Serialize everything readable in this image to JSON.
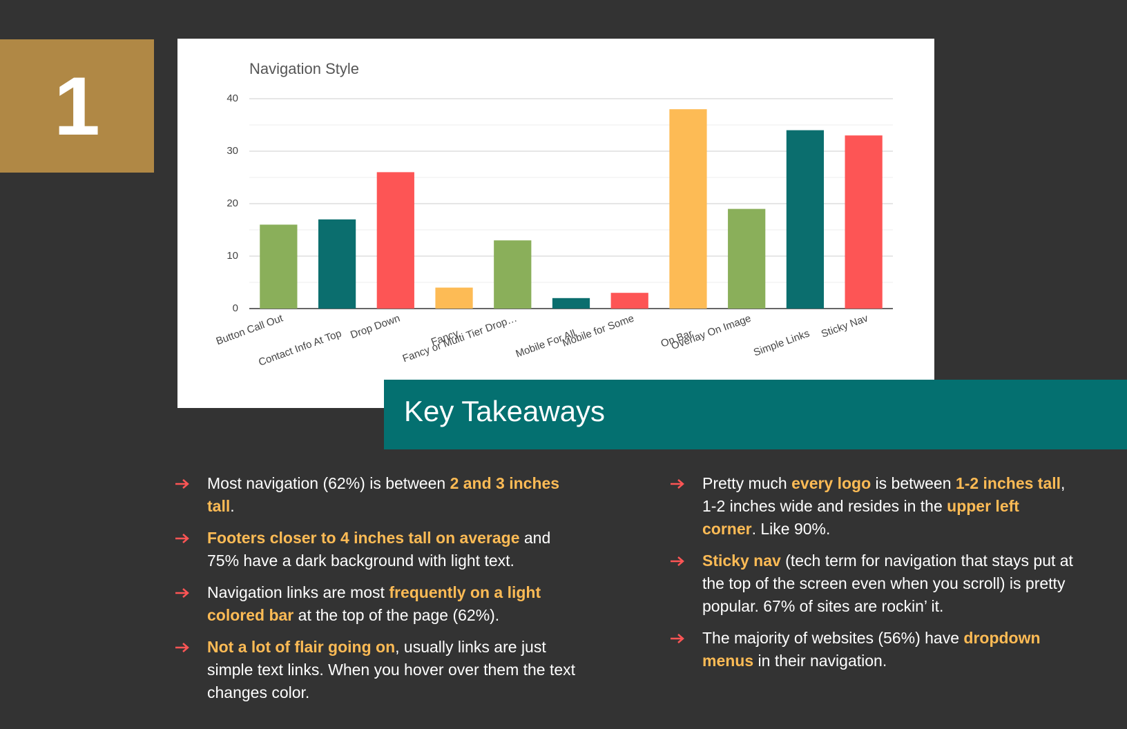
{
  "slide_number": "1",
  "chart_data": {
    "type": "bar",
    "title": "Navigation Style",
    "categories": [
      "Button Call Out",
      "Contact Info At Top",
      "Drop Down",
      "Fancy",
      "Fancy or Multi Tier Drop…",
      "Mobile For All",
      "Mobile for Some",
      "On Bar",
      "Overlay On Image",
      "Simple Links",
      "Sticky Nav"
    ],
    "values": [
      16,
      17,
      26,
      4,
      13,
      2,
      3,
      38,
      19,
      34,
      33
    ],
    "colors": [
      "#8aaf5a",
      "#0b6e6e",
      "#fd5555",
      "#fdbb55",
      "#8aaf5a",
      "#0b6e6e",
      "#fd5555",
      "#fdbb55",
      "#8aaf5a",
      "#0b6e6e",
      "#fd5555"
    ],
    "ylim": [
      0,
      40
    ],
    "yticks": [
      0,
      10,
      20,
      30,
      40
    ],
    "grid": true,
    "minor_grid": true
  },
  "takeaways": {
    "title": "Key Takeaways",
    "left": [
      [
        {
          "text": "Most navigation (62%) is between ",
          "highlight": false
        },
        {
          "text": "2 and 3 inches tall",
          "highlight": true
        },
        {
          "text": ".",
          "highlight": false
        }
      ],
      [
        {
          "text": "Footers closer to 4 inches tall on average",
          "highlight": true
        },
        {
          "text": " and 75% have a dark background with light text.",
          "highlight": false
        }
      ],
      [
        {
          "text": "Navigation links are most ",
          "highlight": false
        },
        {
          "text": "frequently on a light colored bar",
          "highlight": true
        },
        {
          "text": " at the top of the page (62%).",
          "highlight": false
        }
      ],
      [
        {
          "text": "Not a lot of flair going on",
          "highlight": true
        },
        {
          "text": ", usually links are just simple text links. When you hover over them the text changes color.",
          "highlight": false
        }
      ]
    ],
    "right": [
      [
        {
          "text": "Pretty much ",
          "highlight": false
        },
        {
          "text": "every logo",
          "highlight": true
        },
        {
          "text": " is between ",
          "highlight": false
        },
        {
          "text": "1-2 inches tall",
          "highlight": true
        },
        {
          "text": ", 1-2 inches wide and resides in the ",
          "highlight": false
        },
        {
          "text": "upper left corner",
          "highlight": true
        },
        {
          "text": ".  Like 90%.",
          "highlight": false
        }
      ],
      [
        {
          "text": "Sticky nav",
          "highlight": true
        },
        {
          "text": " (tech term for navigation that stays put at the top of the screen even when you scroll) is pretty popular. 67% of sites are rockin’ it.",
          "highlight": false
        }
      ],
      [
        {
          "text": "The majority of websites (56%) have ",
          "highlight": false
        },
        {
          "text": "dropdown menus",
          "highlight": true
        },
        {
          "text": " in their navigation.",
          "highlight": false
        }
      ]
    ]
  }
}
